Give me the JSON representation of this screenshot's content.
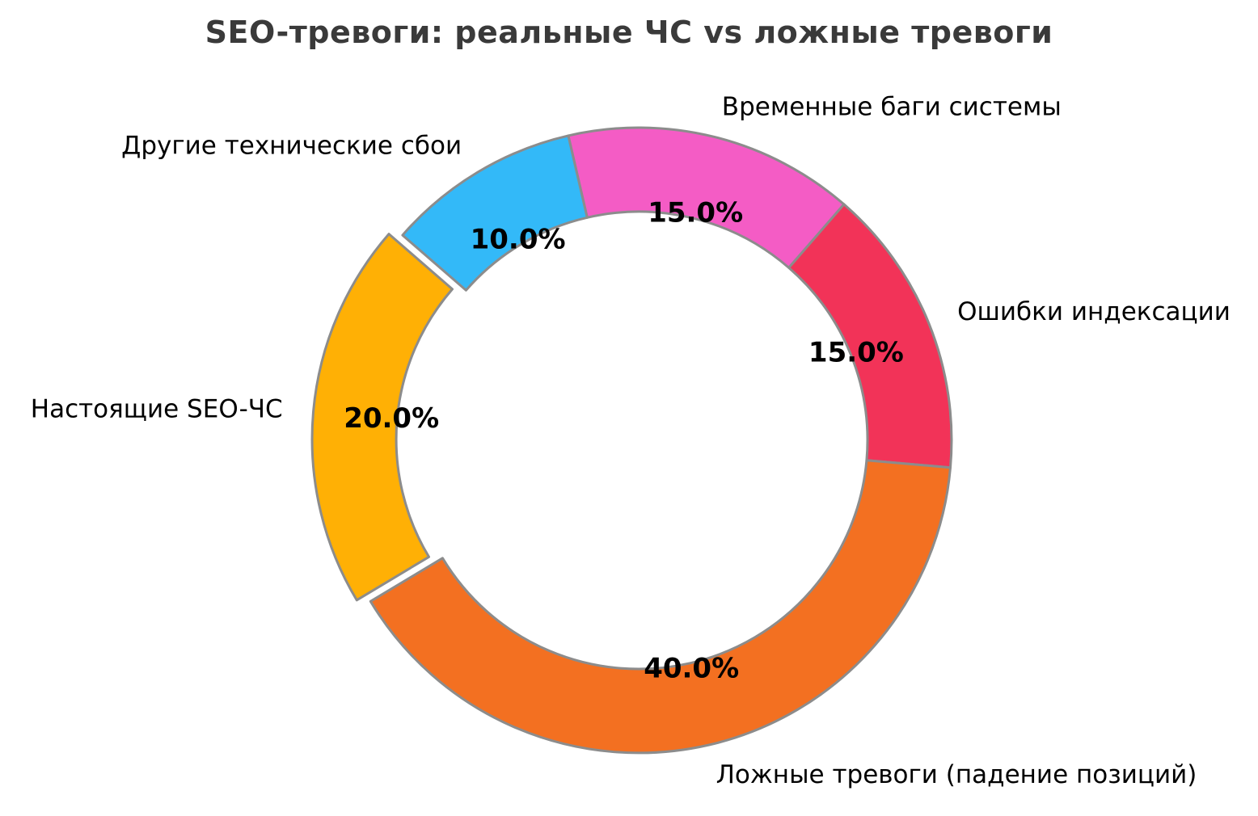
{
  "title": "SEO-тревоги: реальные ЧС vs ложные тревоги",
  "chart_data": {
    "type": "pie",
    "subtype": "donut",
    "title": "SEO-тревоги: реальные ЧС vs ложные тревоги",
    "unit": "percent",
    "legend_position": "none",
    "grid": false,
    "direction": "clockwise",
    "segments": [
      {
        "label": "Временные баги системы",
        "value": 15.0,
        "pct_label": "15.0%",
        "color": "#F45CC5",
        "exploded": false
      },
      {
        "label": "Ошибки индексации",
        "value": 15.0,
        "pct_label": "15.0%",
        "color": "#F23358",
        "exploded": false
      },
      {
        "label": "Ложные тревоги (падение позиций)",
        "value": 40.0,
        "pct_label": "40.0%",
        "color": "#F37021",
        "exploded": false
      },
      {
        "label": "Настоящие SEO-ЧС",
        "value": 20.0,
        "pct_label": "20.0%",
        "color": "#FFB005",
        "exploded": true
      },
      {
        "label": "Другие технические сбои",
        "value": 10.0,
        "pct_label": "10.0%",
        "color": "#33B9F8",
        "exploded": false
      }
    ],
    "style": {
      "edge_color": "#8C8C8C",
      "text_color": "#000000",
      "title_color": "#3A3A3A",
      "background": "#FFFFFF"
    }
  }
}
